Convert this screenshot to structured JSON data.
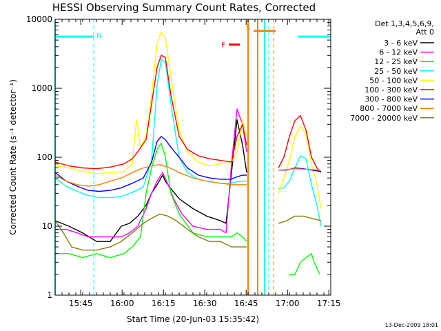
{
  "chart_data": {
    "type": "line",
    "title": "HESSI Observing Summary Count Rates, Corrected",
    "xlabel": "Start Time (20-Jun-03 15:35:42)",
    "ylabel": "Corrected Count Rate (s⁻¹ detector⁻¹)",
    "x_unit": "minutes since 15:35:42",
    "xlim": [
      0,
      100
    ],
    "ylim": [
      1,
      10000
    ],
    "yscale": "log",
    "grid": false,
    "x_ticks": [
      {
        "value": 9.3,
        "label": "15:45"
      },
      {
        "value": 24.3,
        "label": "16:00"
      },
      {
        "value": 39.3,
        "label": "16:15"
      },
      {
        "value": 54.3,
        "label": "16:30"
      },
      {
        "value": 69.3,
        "label": "16:45"
      },
      {
        "value": 84.3,
        "label": "17:00"
      },
      {
        "value": 99.3,
        "label": "17:15"
      }
    ],
    "y_ticks": [
      {
        "value": 1,
        "label": "1"
      },
      {
        "value": 10,
        "label": "10"
      },
      {
        "value": 100,
        "label": "100"
      },
      {
        "value": 1000,
        "label": "1000"
      },
      {
        "value": 10000,
        "label": "10000"
      }
    ],
    "legend": {
      "placement": "right",
      "header": [
        "Det 1,3,4,5,6,9,",
        "Att 0"
      ]
    },
    "series": [
      {
        "name": "3 - 6 keV",
        "color": "#000000",
        "points": [
          [
            0,
            12
          ],
          [
            5,
            10
          ],
          [
            10,
            8
          ],
          [
            15,
            6
          ],
          [
            20,
            6
          ],
          [
            24,
            10
          ],
          [
            27,
            11
          ],
          [
            30,
            14
          ],
          [
            33,
            20
          ],
          [
            35,
            30
          ],
          [
            37,
            40
          ],
          [
            39,
            55
          ],
          [
            40,
            45
          ],
          [
            42,
            35
          ],
          [
            45,
            25
          ],
          [
            50,
            18
          ],
          [
            55,
            14
          ],
          [
            60,
            12
          ],
          [
            62,
            11
          ],
          [
            64,
            60
          ],
          [
            66,
            350
          ],
          [
            68,
            150
          ],
          [
            69.5,
            60
          ]
        ]
      },
      {
        "name": "6 - 12 keV",
        "color": "#ff00ff",
        "points": [
          [
            0,
            9
          ],
          [
            4,
            9
          ],
          [
            8,
            8
          ],
          [
            12,
            7
          ],
          [
            16,
            7
          ],
          [
            20,
            7
          ],
          [
            24,
            7
          ],
          [
            27,
            8
          ],
          [
            30,
            10
          ],
          [
            33,
            18
          ],
          [
            35,
            30
          ],
          [
            37,
            45
          ],
          [
            39,
            60
          ],
          [
            41,
            40
          ],
          [
            43,
            25
          ],
          [
            46,
            15
          ],
          [
            50,
            10
          ],
          [
            55,
            9
          ],
          [
            60,
            9
          ],
          [
            62,
            8
          ],
          [
            64,
            80
          ],
          [
            66,
            500
          ],
          [
            68,
            300
          ],
          [
            69.5,
            120
          ]
        ]
      },
      {
        "name": "12 - 25 keV",
        "color": "#00ff00",
        "points": [
          [
            0,
            4
          ],
          [
            5,
            4
          ],
          [
            10,
            3.5
          ],
          [
            15,
            4
          ],
          [
            20,
            3.5
          ],
          [
            25,
            4
          ],
          [
            28,
            5
          ],
          [
            31,
            7
          ],
          [
            33,
            30
          ],
          [
            35,
            70
          ],
          [
            37,
            130
          ],
          [
            38.5,
            160
          ],
          [
            40,
            100
          ],
          [
            42,
            30
          ],
          [
            45,
            15
          ],
          [
            50,
            8
          ],
          [
            55,
            7
          ],
          [
            60,
            7
          ],
          [
            64,
            7
          ],
          [
            66,
            8
          ],
          [
            68,
            7
          ],
          [
            69.5,
            6
          ],
          [
            85,
            2
          ],
          [
            87,
            2
          ],
          [
            89,
            3
          ],
          [
            91,
            3.5
          ],
          [
            93,
            4
          ],
          [
            94,
            3
          ],
          [
            96,
            2
          ]
        ]
      },
      {
        "name": "25 - 50 keV",
        "color": "#00ffff",
        "points": [
          [
            0,
            50
          ],
          [
            4,
            38
          ],
          [
            8,
            32
          ],
          [
            12,
            28
          ],
          [
            16,
            26
          ],
          [
            20,
            26
          ],
          [
            24,
            27
          ],
          [
            28,
            31
          ],
          [
            32,
            37
          ],
          [
            35,
            90
          ],
          [
            37,
            1100
          ],
          [
            38.5,
            2600
          ],
          [
            40,
            2400
          ],
          [
            42,
            600
          ],
          [
            45,
            100
          ],
          [
            48,
            60
          ],
          [
            52,
            48
          ],
          [
            56,
            44
          ],
          [
            60,
            42
          ],
          [
            64,
            42
          ],
          [
            66,
            44
          ],
          [
            68,
            45
          ],
          [
            69.5,
            45
          ],
          [
            81,
            35
          ],
          [
            83,
            36
          ],
          [
            85,
            45
          ],
          [
            87,
            70
          ],
          [
            89,
            105
          ],
          [
            91,
            95
          ],
          [
            93,
            40
          ],
          [
            95,
            20
          ],
          [
            96.5,
            10
          ]
        ]
      },
      {
        "name": "50 - 100 keV",
        "color": "#ffff00",
        "points": [
          [
            0,
            75
          ],
          [
            5,
            70
          ],
          [
            10,
            62
          ],
          [
            15,
            58
          ],
          [
            20,
            60
          ],
          [
            25,
            62
          ],
          [
            28,
            80
          ],
          [
            29.5,
            350
          ],
          [
            31,
            140
          ],
          [
            33,
            200
          ],
          [
            35,
            800
          ],
          [
            37,
            4500
          ],
          [
            38.5,
            6500
          ],
          [
            40,
            5500
          ],
          [
            42,
            1500
          ],
          [
            45,
            250
          ],
          [
            48,
            120
          ],
          [
            52,
            85
          ],
          [
            56,
            75
          ],
          [
            60,
            80
          ],
          [
            64,
            85
          ],
          [
            66,
            120
          ],
          [
            68,
            350
          ],
          [
            69.5,
            200
          ],
          [
            81,
            30
          ],
          [
            83,
            50
          ],
          [
            85,
            90
          ],
          [
            87,
            200
          ],
          [
            89,
            280
          ],
          [
            91,
            220
          ],
          [
            93,
            80
          ],
          [
            95,
            40
          ],
          [
            96.5,
            18
          ]
        ]
      },
      {
        "name": "100 - 300 keV",
        "color": "#ff0000",
        "points": [
          [
            0,
            85
          ],
          [
            5,
            75
          ],
          [
            10,
            70
          ],
          [
            15,
            68
          ],
          [
            20,
            72
          ],
          [
            25,
            80
          ],
          [
            28,
            95
          ],
          [
            30,
            120
          ],
          [
            33,
            180
          ],
          [
            35,
            600
          ],
          [
            37,
            2000
          ],
          [
            38.5,
            3000
          ],
          [
            40,
            2800
          ],
          [
            42,
            800
          ],
          [
            45,
            200
          ],
          [
            48,
            130
          ],
          [
            52,
            105
          ],
          [
            56,
            95
          ],
          [
            60,
            90
          ],
          [
            64,
            85
          ],
          [
            66,
            200
          ],
          [
            68,
            300
          ],
          [
            69.5,
            150
          ],
          [
            81,
            70
          ],
          [
            83,
            100
          ],
          [
            85,
            200
          ],
          [
            87,
            340
          ],
          [
            89,
            400
          ],
          [
            91,
            250
          ],
          [
            93,
            100
          ],
          [
            95,
            70
          ],
          [
            96.5,
            60
          ]
        ]
      },
      {
        "name": "300 - 800 keV",
        "color": "#0000ff",
        "points": [
          [
            0,
            60
          ],
          [
            4,
            45
          ],
          [
            8,
            38
          ],
          [
            12,
            33
          ],
          [
            16,
            32
          ],
          [
            20,
            33
          ],
          [
            24,
            36
          ],
          [
            28,
            42
          ],
          [
            32,
            50
          ],
          [
            35,
            85
          ],
          [
            37,
            170
          ],
          [
            38.5,
            200
          ],
          [
            40,
            180
          ],
          [
            42,
            140
          ],
          [
            45,
            100
          ],
          [
            48,
            70
          ],
          [
            52,
            55
          ],
          [
            56,
            50
          ],
          [
            60,
            48
          ],
          [
            64,
            48
          ],
          [
            66,
            52
          ],
          [
            68,
            55
          ],
          [
            69.5,
            55
          ],
          [
            81,
            65
          ],
          [
            84,
            65
          ],
          [
            87,
            70
          ],
          [
            90,
            68
          ],
          [
            93,
            65
          ],
          [
            96.5,
            62
          ]
        ]
      },
      {
        "name": "800 - 7000 keV",
        "color": "#ff8000",
        "points": [
          [
            0,
            55
          ],
          [
            4,
            45
          ],
          [
            8,
            40
          ],
          [
            12,
            38
          ],
          [
            16,
            40
          ],
          [
            20,
            45
          ],
          [
            24,
            50
          ],
          [
            28,
            60
          ],
          [
            32,
            70
          ],
          [
            35,
            75
          ],
          [
            38,
            78
          ],
          [
            41,
            72
          ],
          [
            45,
            60
          ],
          [
            50,
            50
          ],
          [
            55,
            45
          ],
          [
            60,
            42
          ],
          [
            64,
            40
          ],
          [
            66,
            40
          ],
          [
            68,
            40
          ],
          [
            69.5,
            40
          ],
          [
            81,
            65
          ],
          [
            84,
            66
          ],
          [
            87,
            68
          ],
          [
            90,
            67
          ],
          [
            93,
            66
          ],
          [
            96.5,
            65
          ]
        ]
      },
      {
        "name": "7000 - 20000 keV",
        "color": "#808000",
        "points": [
          [
            0,
            12
          ],
          [
            3,
            8
          ],
          [
            6,
            5
          ],
          [
            10,
            4.5
          ],
          [
            15,
            4.5
          ],
          [
            20,
            5
          ],
          [
            24,
            6
          ],
          [
            28,
            8
          ],
          [
            32,
            11
          ],
          [
            35,
            13
          ],
          [
            38,
            15
          ],
          [
            41,
            14
          ],
          [
            44,
            12
          ],
          [
            48,
            9
          ],
          [
            52,
            7
          ],
          [
            56,
            6
          ],
          [
            60,
            6
          ],
          [
            64,
            5
          ],
          [
            66,
            5
          ],
          [
            68,
            5
          ],
          [
            69.5,
            5
          ],
          [
            81,
            11
          ],
          [
            84,
            12
          ],
          [
            87,
            14
          ],
          [
            90,
            14
          ],
          [
            93,
            13
          ],
          [
            96.5,
            12
          ]
        ]
      }
    ],
    "segments": [
      {
        "label": "N",
        "color": "#00ffff",
        "y": 5600,
        "bars": [
          [
            0,
            14
          ]
        ],
        "dashed_x": [
          14
        ]
      },
      {
        "label": "S",
        "color": "#ff8000",
        "y": 6800,
        "bars": [
          [
            72,
            80
          ]
        ],
        "dashed_x": []
      },
      {
        "label": "F",
        "color": "#ff0000",
        "y": 4300,
        "bars": [
          [
            63,
            67
          ]
        ],
        "dashed_x": []
      }
    ],
    "extra_segments": [
      {
        "color": "#00ffff",
        "y": 5600,
        "bars": [
          [
            88,
            100
          ]
        ],
        "dashed_x": [
          77.5,
          100
        ]
      }
    ],
    "solid_verticals": [
      {
        "color": "#00ffff",
        "x": 0
      },
      {
        "color": "#ff8000",
        "x": 70
      },
      {
        "color": "#ff8000",
        "x": 73.5
      },
      {
        "color": "#00ffff",
        "x": 76
      }
    ],
    "orange_dashed_verticals": [
      79.3
    ],
    "stamp": "13-Dec-2009 18:01"
  }
}
